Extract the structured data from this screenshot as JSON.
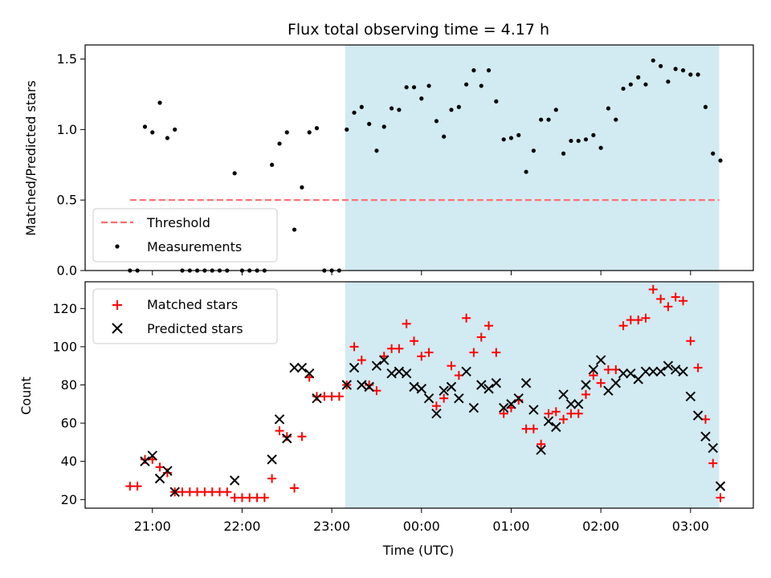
{
  "title": "Flux total observing time = 4.17 h",
  "colors": {
    "shade": "#add8e6",
    "threshold": "#ff6b6b",
    "measurement": "#000000",
    "matched": "#ff0000",
    "predicted": "#000000"
  },
  "chart_data": [
    {
      "type": "scatter",
      "ylabel": "Matched/Predicted stars",
      "ylim": [
        0,
        1.6
      ],
      "yticks": [
        0.0,
        0.5,
        1.0,
        1.5
      ],
      "ytick_labels": [
        "0.0",
        "0.5",
        "1.0",
        "1.5"
      ],
      "xlim": [
        20.25,
        27.7
      ],
      "shaded_span": [
        23.15,
        27.32
      ],
      "threshold": {
        "name": "Threshold",
        "y": 0.5,
        "x": [
          20.75,
          27.32
        ]
      },
      "legend": {
        "position": "lower-left",
        "entries": [
          "Threshold",
          "Measurements"
        ]
      },
      "series": [
        {
          "name": "Measurements",
          "x": [
            20.75,
            20.833,
            20.917,
            21.0,
            21.083,
            21.167,
            21.25,
            21.333,
            21.417,
            21.5,
            21.583,
            21.667,
            21.75,
            21.833,
            21.917,
            22.0,
            22.083,
            22.167,
            22.25,
            22.333,
            22.417,
            22.5,
            22.583,
            22.667,
            22.75,
            22.833,
            22.917,
            23.0,
            23.083,
            23.167,
            23.25,
            23.333,
            23.417,
            23.5,
            23.583,
            23.667,
            23.75,
            23.833,
            23.917,
            24.0,
            24.083,
            24.167,
            24.25,
            24.333,
            24.417,
            24.5,
            24.583,
            24.667,
            24.75,
            24.833,
            24.917,
            25.0,
            25.083,
            25.167,
            25.25,
            25.333,
            25.417,
            25.5,
            25.583,
            25.667,
            25.75,
            25.833,
            25.917,
            26.0,
            26.083,
            26.167,
            26.25,
            26.333,
            26.417,
            26.5,
            26.583,
            26.667,
            26.75,
            26.833,
            26.917,
            27.0,
            27.083,
            27.167,
            27.25,
            27.333
          ],
          "y": [
            0.0,
            0.0,
            1.02,
            0.98,
            1.19,
            0.94,
            1.0,
            0.0,
            0.0,
            0.0,
            0.0,
            0.0,
            0.0,
            0.0,
            0.69,
            0.0,
            0.0,
            0.0,
            0.0,
            0.75,
            0.9,
            0.98,
            0.29,
            0.59,
            0.98,
            1.01,
            0.0,
            0.0,
            0.0,
            1.0,
            1.12,
            1.16,
            1.04,
            0.85,
            1.02,
            1.15,
            1.14,
            1.3,
            1.3,
            1.22,
            1.31,
            1.06,
            0.95,
            1.14,
            1.16,
            1.32,
            1.42,
            1.31,
            1.42,
            1.2,
            0.93,
            0.94,
            0.96,
            0.7,
            0.85,
            1.07,
            1.07,
            1.14,
            0.83,
            0.92,
            0.92,
            0.93,
            0.96,
            0.87,
            1.15,
            1.07,
            1.29,
            1.32,
            1.37,
            1.32,
            1.49,
            1.45,
            1.34,
            1.43,
            1.42,
            1.39,
            1.39,
            1.16,
            0.83,
            0.78
          ]
        }
      ]
    },
    {
      "type": "scatter",
      "ylabel": "Count",
      "xlabel": "Time (UTC)",
      "ylim": [
        15.5,
        134
      ],
      "yticks": [
        20,
        40,
        60,
        80,
        100,
        120
      ],
      "ytick_labels": [
        "20",
        "40",
        "60",
        "80",
        "100",
        "120"
      ],
      "xlim": [
        20.25,
        27.7
      ],
      "xticks": [
        21,
        22,
        23,
        24,
        25,
        26,
        27
      ],
      "xtick_labels": [
        "21:00",
        "22:00",
        "23:00",
        "00:00",
        "01:00",
        "02:00",
        "03:00"
      ],
      "shaded_span": [
        23.15,
        27.32
      ],
      "legend": {
        "position": "upper-left",
        "entries": [
          "Matched stars",
          "Predicted stars"
        ]
      },
      "series": [
        {
          "name": "Matched stars",
          "x": [
            20.75,
            20.833,
            20.917,
            21.0,
            21.083,
            21.167,
            21.25,
            21.333,
            21.417,
            21.5,
            21.583,
            21.667,
            21.75,
            21.833,
            21.917,
            22.0,
            22.083,
            22.167,
            22.25,
            22.333,
            22.417,
            22.5,
            22.583,
            22.667,
            22.75,
            22.833,
            22.917,
            23.0,
            23.083,
            23.167,
            23.25,
            23.333,
            23.417,
            23.5,
            23.583,
            23.667,
            23.75,
            23.833,
            23.917,
            24.0,
            24.083,
            24.167,
            24.25,
            24.333,
            24.417,
            24.5,
            24.583,
            24.667,
            24.75,
            24.833,
            24.917,
            25.0,
            25.083,
            25.167,
            25.25,
            25.333,
            25.417,
            25.5,
            25.583,
            25.667,
            25.75,
            25.833,
            25.917,
            26.0,
            26.083,
            26.167,
            26.25,
            26.333,
            26.417,
            26.5,
            26.583,
            26.667,
            26.75,
            26.833,
            26.917,
            27.0,
            27.083,
            27.167,
            27.25,
            27.333
          ],
          "y": [
            27,
            27,
            41,
            41,
            37,
            34,
            24,
            24,
            24,
            24,
            24,
            24,
            24,
            24,
            21,
            21,
            21,
            21,
            21,
            31,
            56,
            53,
            26,
            53,
            84,
            74,
            74,
            74,
            74,
            80,
            100,
            93,
            80,
            77,
            95,
            99,
            99,
            112,
            103,
            95,
            97,
            69,
            73,
            90,
            85,
            115,
            97,
            105,
            111,
            97,
            65,
            68,
            72,
            57,
            57,
            49,
            65,
            66,
            62,
            65,
            65,
            75,
            85,
            81,
            88,
            88,
            111,
            114,
            114,
            115,
            130,
            125,
            121,
            126,
            124,
            103,
            89,
            62,
            39,
            21
          ]
        },
        {
          "name": "Predicted stars",
          "x": [
            20.917,
            21.0,
            21.083,
            21.167,
            21.25,
            21.917,
            22.333,
            22.417,
            22.5,
            22.583,
            22.667,
            22.75,
            22.833,
            23.167,
            23.25,
            23.333,
            23.417,
            23.5,
            23.583,
            23.667,
            23.75,
            23.833,
            23.917,
            24.0,
            24.083,
            24.167,
            24.25,
            24.333,
            24.417,
            24.5,
            24.583,
            24.667,
            24.75,
            24.833,
            24.917,
            25.0,
            25.083,
            25.167,
            25.25,
            25.333,
            25.417,
            25.5,
            25.583,
            25.667,
            25.75,
            25.833,
            25.917,
            26.0,
            26.083,
            26.167,
            26.25,
            26.333,
            26.417,
            26.5,
            26.583,
            26.667,
            26.75,
            26.833,
            26.917,
            27.0,
            27.083,
            27.167,
            27.25,
            27.333
          ],
          "y": [
            40,
            43,
            31,
            35,
            24,
            30,
            41,
            62,
            52,
            89,
            89,
            86,
            73,
            80,
            89,
            80,
            79,
            90,
            93,
            86,
            87,
            86,
            79,
            78,
            73,
            65,
            77,
            79,
            73,
            87,
            68,
            80,
            78,
            81,
            68,
            70,
            73,
            81,
            67,
            46,
            61,
            58,
            75,
            70,
            70,
            80,
            88,
            93,
            77,
            81,
            86,
            86,
            83,
            87,
            87,
            87,
            90,
            88,
            87,
            74,
            64,
            53,
            47,
            27
          ]
        }
      ]
    }
  ]
}
